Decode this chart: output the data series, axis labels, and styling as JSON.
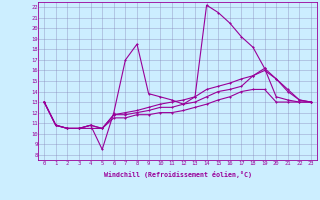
{
  "xlabel": "Windchill (Refroidissement éolien,°C)",
  "bg_color": "#cceeff",
  "line_color": "#990099",
  "grid_color": "#aaaacc",
  "xlim": [
    -0.5,
    23.5
  ],
  "ylim": [
    7.5,
    22.5
  ],
  "xticks": [
    0,
    1,
    2,
    3,
    4,
    5,
    6,
    7,
    8,
    9,
    10,
    11,
    12,
    13,
    14,
    15,
    16,
    17,
    18,
    19,
    20,
    21,
    22,
    23
  ],
  "yticks": [
    8,
    9,
    10,
    11,
    12,
    13,
    14,
    15,
    16,
    17,
    18,
    19,
    20,
    21,
    22
  ],
  "series": [
    [
      13.0,
      10.8,
      10.5,
      10.5,
      10.8,
      8.5,
      12.0,
      17.0,
      18.5,
      13.8,
      13.5,
      13.2,
      12.8,
      13.5,
      22.2,
      21.5,
      20.5,
      19.2,
      18.2,
      16.2,
      15.2,
      14.2,
      13.2,
      13.0
    ],
    [
      13.0,
      10.8,
      10.5,
      10.5,
      10.8,
      10.5,
      11.8,
      12.0,
      12.2,
      12.5,
      12.8,
      13.0,
      13.2,
      13.5,
      14.2,
      14.5,
      14.8,
      15.2,
      15.5,
      16.0,
      15.2,
      14.0,
      13.2,
      13.0
    ],
    [
      13.0,
      10.8,
      10.5,
      10.5,
      10.8,
      10.5,
      11.8,
      11.8,
      12.0,
      12.2,
      12.5,
      12.5,
      12.8,
      13.0,
      13.5,
      14.0,
      14.2,
      14.5,
      15.5,
      16.2,
      13.5,
      13.2,
      13.0,
      13.0
    ],
    [
      13.0,
      10.8,
      10.5,
      10.5,
      10.5,
      10.5,
      11.5,
      11.5,
      11.8,
      11.8,
      12.0,
      12.0,
      12.2,
      12.5,
      12.8,
      13.2,
      13.5,
      14.0,
      14.2,
      14.2,
      13.0,
      13.0,
      13.0,
      13.0
    ]
  ]
}
